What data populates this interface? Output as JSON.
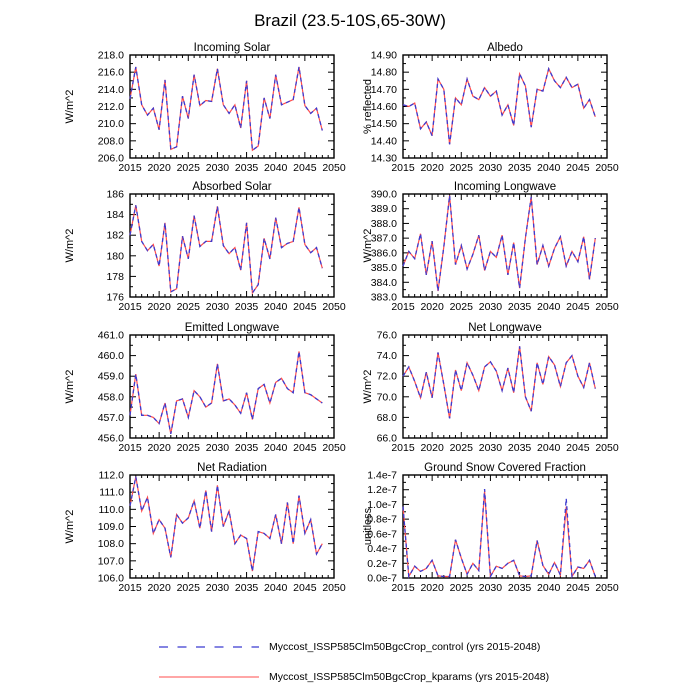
{
  "page": {
    "title": "Brazil (23.5-10S,65-30W)"
  },
  "legend": {
    "items": [
      {
        "name": "control",
        "label": "Myccost_ISSP585Clm50BgcCrop_control (yrs 2015-2048)",
        "color": "#3b3bd1",
        "style": "dashed"
      },
      {
        "name": "kparams",
        "label": "Myccost_ISSP585Clm50BgcCrop_kparams (yrs 2015-2048)",
        "color": "#ff4d4d",
        "style": "solid"
      }
    ]
  },
  "chart_data": {
    "type": "line",
    "grid": false,
    "x_axis": {
      "range": [
        2015,
        2050
      ],
      "major_ticks": [
        2015,
        2020,
        2025,
        2030,
        2035,
        2040,
        2045,
        2050
      ],
      "minor_tick_every": 1
    },
    "years": [
      2015,
      2016,
      2017,
      2018,
      2019,
      2020,
      2021,
      2022,
      2023,
      2024,
      2025,
      2026,
      2027,
      2028,
      2029,
      2030,
      2031,
      2032,
      2033,
      2034,
      2035,
      2036,
      2037,
      2038,
      2039,
      2040,
      2041,
      2042,
      2043,
      2044,
      2045,
      2046,
      2047,
      2048
    ],
    "charts": [
      {
        "id": "incoming-solar",
        "title": "Incoming Solar",
        "ylabel": "W/m^2",
        "ylim": [
          206,
          218
        ],
        "y_step": 2,
        "y_tick_labels": [
          "206.0",
          "208.0",
          "210.0",
          "212.0",
          "214.0",
          "216.0",
          "218.0"
        ],
        "series": [
          {
            "name": "control",
            "values": [
              212.9,
              216.6,
              212.2,
              211.0,
              211.8,
              209.3,
              215.1,
              207.0,
              207.3,
              213.2,
              210.6,
              215.7,
              212.1,
              212.7,
              212.6,
              216.4,
              212.2,
              211.2,
              212.2,
              209.5,
              215.0,
              206.9,
              207.4,
              213.0,
              210.6,
              215.7,
              212.2,
              212.5,
              212.8,
              216.6,
              212.1,
              211.2,
              211.8,
              209.2
            ]
          },
          {
            "name": "kparams",
            "values": [
              212.9,
              216.6,
              212.2,
              211.0,
              211.8,
              209.3,
              215.1,
              207.0,
              207.3,
              213.2,
              210.6,
              215.7,
              212.1,
              212.7,
              212.6,
              216.4,
              212.2,
              211.2,
              212.2,
              209.5,
              215.0,
              206.9,
              207.4,
              213.0,
              210.6,
              215.7,
              212.2,
              212.5,
              212.8,
              216.6,
              212.1,
              211.2,
              211.8,
              209.2
            ]
          }
        ]
      },
      {
        "id": "albedo",
        "title": "Albedo",
        "ylabel": "% reflected",
        "ylim": [
          14.3,
          14.9
        ],
        "y_step": 0.1,
        "y_tick_labels": [
          "14.30",
          "14.40",
          "14.50",
          "14.60",
          "14.70",
          "14.80",
          "14.90"
        ],
        "series": [
          {
            "name": "control",
            "values": [
              14.61,
              14.6,
              14.62,
              14.47,
              14.51,
              14.43,
              14.76,
              14.7,
              14.38,
              14.65,
              14.61,
              14.76,
              14.66,
              14.64,
              14.71,
              14.66,
              14.69,
              14.55,
              14.61,
              14.49,
              14.79,
              14.72,
              14.48,
              14.7,
              14.69,
              14.82,
              14.75,
              14.71,
              14.77,
              14.71,
              14.73,
              14.59,
              14.64,
              14.54
            ]
          },
          {
            "name": "kparams",
            "values": [
              14.61,
              14.6,
              14.62,
              14.47,
              14.51,
              14.43,
              14.76,
              14.7,
              14.38,
              14.65,
              14.61,
              14.76,
              14.66,
              14.64,
              14.71,
              14.66,
              14.69,
              14.55,
              14.61,
              14.49,
              14.79,
              14.72,
              14.48,
              14.7,
              14.69,
              14.82,
              14.75,
              14.71,
              14.77,
              14.71,
              14.73,
              14.59,
              14.64,
              14.54
            ]
          }
        ]
      },
      {
        "id": "absorbed-solar",
        "title": "Absorbed Solar",
        "ylabel": "W/m^2",
        "ylim": [
          176,
          186
        ],
        "y_step": 2,
        "y_tick_labels": [
          "176",
          "178",
          "180",
          "182",
          "184",
          "186"
        ],
        "series": [
          {
            "name": "control",
            "values": [
              182.0,
              184.9,
              181.4,
              180.5,
              181.1,
              179.0,
              183.2,
              176.5,
              176.8,
              181.9,
              179.7,
              183.9,
              180.9,
              181.4,
              181.4,
              184.8,
              181.0,
              180.2,
              180.8,
              178.6,
              183.2,
              176.4,
              177.2,
              181.7,
              179.7,
              183.7,
              180.8,
              181.2,
              181.4,
              184.7,
              181.1,
              180.3,
              180.8,
              178.8
            ]
          },
          {
            "name": "kparams",
            "values": [
              182.0,
              184.9,
              181.4,
              180.5,
              181.1,
              179.0,
              183.2,
              176.5,
              176.8,
              181.9,
              179.7,
              183.9,
              180.9,
              181.4,
              181.4,
              184.8,
              181.0,
              180.2,
              180.8,
              178.6,
              183.2,
              176.4,
              177.2,
              181.7,
              179.7,
              183.7,
              180.8,
              181.2,
              181.4,
              184.7,
              181.1,
              180.3,
              180.8,
              178.8
            ]
          }
        ]
      },
      {
        "id": "incoming-longwave",
        "title": "Incoming Longwave",
        "ylabel": "W/m^2",
        "ylim": [
          383,
          390
        ],
        "y_step": 1,
        "y_tick_labels": [
          "383.0",
          "384.0",
          "385.0",
          "386.0",
          "387.0",
          "388.0",
          "389.0",
          "390.0"
        ],
        "series": [
          {
            "name": "control",
            "values": [
              385.1,
              386.1,
              385.6,
              387.3,
              384.5,
              386.8,
              383.4,
              386.4,
              389.9,
              385.2,
              386.5,
              384.9,
              385.9,
              387.2,
              384.8,
              386.1,
              385.7,
              387.2,
              384.5,
              386.7,
              383.6,
              387.0,
              389.8,
              385.2,
              386.5,
              385.1,
              386.3,
              387.1,
              385.1,
              386.1,
              385.4,
              387.1,
              384.2,
              387.0
            ]
          },
          {
            "name": "kparams",
            "values": [
              385.1,
              386.1,
              385.6,
              387.3,
              384.5,
              386.8,
              383.4,
              386.4,
              389.9,
              385.2,
              386.5,
              384.9,
              385.9,
              387.2,
              384.8,
              386.1,
              385.7,
              387.2,
              384.5,
              386.7,
              383.6,
              387.0,
              389.8,
              385.2,
              386.5,
              385.1,
              386.3,
              387.1,
              385.1,
              386.1,
              385.4,
              387.1,
              384.2,
              387.0
            ]
          }
        ]
      },
      {
        "id": "emitted-longwave",
        "title": "Emitted Longwave",
        "ylabel": "W/m^2",
        "ylim": [
          456,
          461
        ],
        "y_step": 1,
        "y_tick_labels": [
          "456.0",
          "457.0",
          "458.0",
          "459.0",
          "460.0",
          "461.0"
        ],
        "series": [
          {
            "name": "control",
            "values": [
              457.1,
              459.1,
              457.1,
              457.1,
              457.0,
              456.7,
              457.7,
              456.2,
              457.8,
              457.9,
              457.0,
              458.3,
              458.0,
              457.5,
              457.7,
              459.6,
              457.8,
              457.9,
              457.6,
              457.2,
              458.2,
              456.9,
              458.4,
              458.6,
              457.7,
              458.7,
              458.9,
              458.4,
              458.2,
              460.2,
              458.2,
              458.1,
              457.9,
              457.7
            ]
          },
          {
            "name": "kparams",
            "values": [
              457.1,
              459.1,
              457.1,
              457.1,
              457.0,
              456.7,
              457.7,
              456.2,
              457.8,
              457.9,
              457.0,
              458.3,
              458.0,
              457.5,
              457.7,
              459.6,
              457.8,
              457.9,
              457.6,
              457.2,
              458.2,
              456.9,
              458.4,
              458.6,
              457.7,
              458.7,
              458.9,
              458.4,
              458.2,
              460.2,
              458.2,
              458.1,
              457.9,
              457.7
            ]
          }
        ]
      },
      {
        "id": "net-longwave",
        "title": "Net Longwave",
        "ylabel": "W/m^2",
        "ylim": [
          66,
          76
        ],
        "y_step": 2,
        "y_tick_labels": [
          "66.0",
          "68.0",
          "70.0",
          "72.0",
          "74.0",
          "76.0"
        ],
        "series": [
          {
            "name": "control",
            "values": [
              72.0,
              72.9,
              71.5,
              69.9,
              72.4,
              69.9,
              74.3,
              71.2,
              67.9,
              72.6,
              70.6,
              73.3,
              72.1,
              70.6,
              72.9,
              73.4,
              72.5,
              70.6,
              72.8,
              70.4,
              74.9,
              70.0,
              68.6,
              73.3,
              71.2,
              73.9,
              73.1,
              71.0,
              73.3,
              74.0,
              72.0,
              70.9,
              73.3,
              70.8
            ]
          },
          {
            "name": "kparams",
            "values": [
              72.0,
              72.9,
              71.5,
              69.9,
              72.4,
              69.9,
              74.3,
              71.2,
              67.9,
              72.6,
              70.6,
              73.3,
              72.1,
              70.6,
              72.9,
              73.4,
              72.5,
              70.6,
              72.8,
              70.4,
              74.9,
              70.0,
              68.6,
              73.3,
              71.2,
              73.9,
              73.1,
              71.0,
              73.3,
              74.0,
              72.0,
              70.9,
              73.3,
              70.8
            ]
          }
        ]
      },
      {
        "id": "net-radiation",
        "title": "Net Radiation",
        "ylabel": "W/m^2",
        "ylim": [
          106,
          112
        ],
        "y_step": 1,
        "y_tick_labels": [
          "106.0",
          "107.0",
          "108.0",
          "109.0",
          "110.0",
          "111.0",
          "112.0"
        ],
        "series": [
          {
            "name": "control",
            "values": [
              110.2,
              111.9,
              109.9,
              110.7,
              108.6,
              109.4,
              108.9,
              107.2,
              109.7,
              109.2,
              109.5,
              110.5,
              108.9,
              111.1,
              108.7,
              111.4,
              109.0,
              109.9,
              108.0,
              108.5,
              108.3,
              106.4,
              108.7,
              108.6,
              108.3,
              109.7,
              108.0,
              110.4,
              108.0,
              110.8,
              108.6,
              109.4,
              107.4,
              108.0
            ]
          },
          {
            "name": "kparams",
            "values": [
              110.2,
              111.9,
              109.9,
              110.7,
              108.6,
              109.4,
              108.9,
              107.2,
              109.7,
              109.2,
              109.5,
              110.5,
              108.9,
              111.1,
              108.7,
              111.4,
              109.0,
              109.9,
              108.0,
              108.5,
              108.3,
              106.4,
              108.7,
              108.6,
              108.3,
              109.7,
              108.0,
              110.4,
              108.0,
              110.8,
              108.6,
              109.4,
              107.4,
              108.0
            ]
          }
        ]
      },
      {
        "id": "ground-snow",
        "title": "Ground Snow Covered Fraction",
        "ylabel": "unitless",
        "ylim": [
          0.0,
          1.4
        ],
        "y_step": 0.2,
        "y_scale": "1e-7",
        "y_tick_labels": [
          "0.0e-7",
          "0.2e-7",
          "0.4e-7",
          "0.6e-7",
          "0.8e-7",
          "1.0e-7",
          "1.2e-7",
          "1.4e-7"
        ],
        "series": [
          {
            "name": "control",
            "values": [
              0.97,
              0.02,
              0.16,
              0.09,
              0.13,
              0.24,
              0.03,
              0.02,
              0.02,
              0.52,
              0.27,
              0.05,
              0.2,
              0.1,
              1.21,
              0.02,
              0.16,
              0.13,
              0.2,
              0.24,
              0.03,
              0.02,
              0.03,
              0.51,
              0.17,
              0.05,
              0.21,
              0.04,
              1.08,
              0.02,
              0.15,
              0.13,
              0.24,
              0.02
            ]
          },
          {
            "name": "kparams",
            "values": [
              0.97,
              0.02,
              0.16,
              0.09,
              0.13,
              0.24,
              0.03,
              0.02,
              0.02,
              0.52,
              0.27,
              0.05,
              0.2,
              0.1,
              1.18,
              0.02,
              0.16,
              0.13,
              0.2,
              0.24,
              0.03,
              0.02,
              0.03,
              0.51,
              0.17,
              0.05,
              0.21,
              0.04,
              0.97,
              0.02,
              0.15,
              0.13,
              0.24,
              0.02
            ]
          }
        ]
      }
    ]
  }
}
